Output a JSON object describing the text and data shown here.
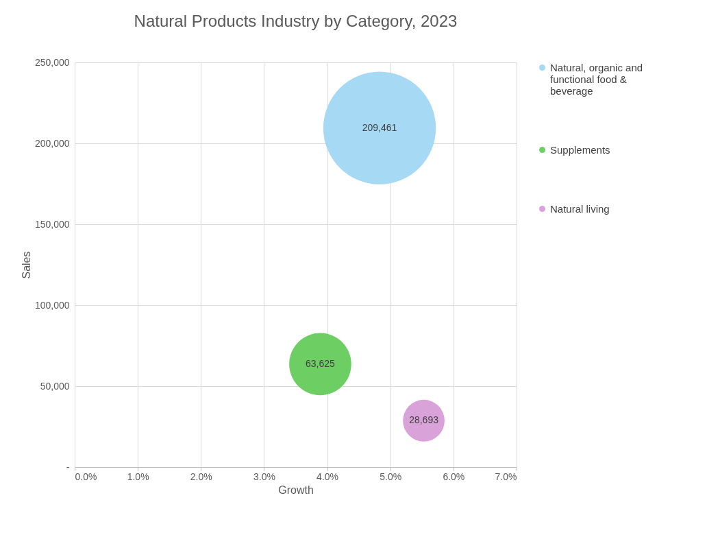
{
  "chart_data": {
    "type": "bubble",
    "title": "Natural Products Industry by Category, 2023",
    "xlabel": "Growth",
    "ylabel": "Sales",
    "series": [
      {
        "name": "Natural, organic and functional food & beverage",
        "color": "#a6d9f4",
        "x": [
          4.83
        ],
        "values": [
          209461
        ],
        "sizes": [
          1
        ],
        "value_labels": [
          "209,461"
        ]
      },
      {
        "name": "Supplements",
        "color": "#6dce63",
        "x": [
          3.89
        ],
        "values": [
          63625
        ],
        "sizes": [
          0.304
        ],
        "value_labels": [
          "63,625"
        ]
      },
      {
        "name": "Natural living",
        "color": "#d9a2d9",
        "x": [
          5.53
        ],
        "values": [
          28693
        ],
        "sizes": [
          0.137
        ],
        "value_labels": [
          "28,693"
        ]
      }
    ],
    "xlim": [
      0,
      7
    ],
    "xticks": [
      {
        "value": 0,
        "label": "0.0%"
      },
      {
        "value": 1,
        "label": "1.0%"
      },
      {
        "value": 2,
        "label": "2.0%"
      },
      {
        "value": 3,
        "label": "3.0%"
      },
      {
        "value": 4,
        "label": "4.0%"
      },
      {
        "value": 5,
        "label": "5.0%"
      },
      {
        "value": 6,
        "label": "6.0%"
      },
      {
        "value": 7,
        "label": "7.0%"
      }
    ],
    "ylim": [
      0,
      250000
    ],
    "yticks": [
      {
        "value": 0,
        "label": "-"
      },
      {
        "value": 50000,
        "label": "50,000"
      },
      {
        "value": 100000,
        "label": "100,000"
      },
      {
        "value": 150000,
        "label": "150,000"
      },
      {
        "value": 200000,
        "label": "200,000"
      },
      {
        "value": 250000,
        "label": "250,000"
      }
    ],
    "grid": true,
    "legend": "right"
  }
}
